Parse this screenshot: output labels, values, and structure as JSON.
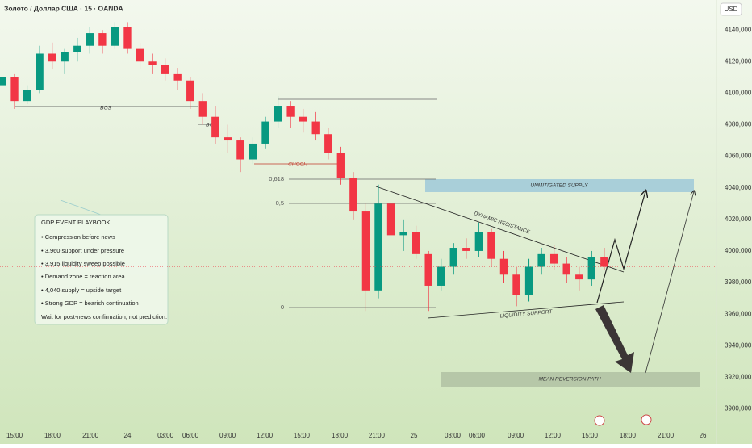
{
  "chart_data": {
    "type": "candlestick",
    "title": "Золото / Доллар США · 15 · OANDA",
    "currency": "USD",
    "x": [
      -1,
      0,
      1,
      2,
      3,
      4,
      5,
      6,
      7,
      8,
      9,
      10,
      11,
      12,
      13,
      14,
      15,
      16,
      17,
      18,
      19,
      20,
      21,
      22,
      23,
      24,
      25,
      26,
      27,
      28,
      29,
      30,
      31,
      32,
      33,
      34,
      35,
      36,
      37,
      38,
      39,
      40,
      41,
      42,
      43,
      44,
      45,
      46,
      47
    ],
    "open": [
      4105,
      4110,
      4095,
      4102,
      4125,
      4120,
      4126,
      4130,
      4138,
      4130,
      4142,
      4128,
      4120,
      4118,
      4112,
      4108,
      4095,
      4085,
      4072,
      4070,
      4058,
      4068,
      4082,
      4092,
      4085,
      4082,
      4074,
      4062,
      4046,
      4025,
      3975,
      4030,
      4010,
      4012,
      3998,
      3978,
      3990,
      4002,
      4000,
      4012,
      3995,
      3985,
      3972,
      3990,
      3998,
      3992,
      3985,
      3982,
      3996
    ],
    "high": [
      4115,
      4112,
      4105,
      4130,
      4132,
      4128,
      4135,
      4142,
      4140,
      4145,
      4145,
      4132,
      4125,
      4122,
      4116,
      4110,
      4100,
      4092,
      4080,
      4072,
      4072,
      4085,
      4098,
      4095,
      4090,
      4088,
      4078,
      4066,
      4050,
      4030,
      4042,
      4034,
      4020,
      4016,
      4000,
      3995,
      4005,
      4008,
      4018,
      4014,
      4000,
      3990,
      3995,
      4002,
      4004,
      3996,
      3990,
      4000,
      4002
    ],
    "low": [
      4100,
      4090,
      4093,
      4100,
      4115,
      4112,
      4120,
      4125,
      4125,
      4128,
      4125,
      4115,
      4112,
      4108,
      4102,
      4090,
      4080,
      4068,
      4062,
      4050,
      4055,
      4065,
      4078,
      4078,
      4075,
      4070,
      4058,
      4042,
      4020,
      3962,
      3970,
      4005,
      4000,
      3995,
      3962,
      3975,
      3985,
      3995,
      3996,
      3990,
      3980,
      3965,
      3968,
      3985,
      3988,
      3980,
      3975,
      3978,
      3988
    ],
    "close": [
      4110,
      4095,
      4102,
      4125,
      4120,
      4126,
      4130,
      4138,
      4130,
      4142,
      4128,
      4120,
      4118,
      4112,
      4108,
      4095,
      4085,
      4072,
      4070,
      4058,
      4068,
      4082,
      4092,
      4085,
      4082,
      4074,
      4062,
      4046,
      4025,
      3975,
      4030,
      4010,
      4012,
      3998,
      3978,
      3990,
      4002,
      4000,
      4012,
      3995,
      3985,
      3972,
      3990,
      3998,
      3992,
      3985,
      3982,
      3996,
      3990
    ],
    "up_color": "#089981",
    "down_color": "#f23645",
    "xlim": [
      -1.16,
      55.95
    ],
    "ylim": [
      3889,
      4159
    ],
    "yticks": [
      {
        "value": 4140,
        "label": "4140,000"
      },
      {
        "value": 4120,
        "label": "4120,000"
      },
      {
        "value": 4100,
        "label": "4100,000"
      },
      {
        "value": 4080,
        "label": "4080,000"
      },
      {
        "value": 4060,
        "label": "4060,000"
      },
      {
        "value": 4040,
        "label": "4040,000"
      },
      {
        "value": 4020,
        "label": "4020,000"
      },
      {
        "value": 4000,
        "label": "4000,000"
      },
      {
        "value": 3980,
        "label": "3980,000"
      },
      {
        "value": 3960,
        "label": "3960,000"
      },
      {
        "value": 3940,
        "label": "3940,000"
      },
      {
        "value": 3920,
        "label": "3920,000"
      },
      {
        "value": 3900,
        "label": "3900,000"
      }
    ],
    "xticks": [
      {
        "value": 0,
        "label": "15:00"
      },
      {
        "value": 3.02,
        "label": "18:00"
      },
      {
        "value": 6.05,
        "label": "21:00"
      },
      {
        "value": 9.0,
        "label": "24"
      },
      {
        "value": 12.03,
        "label": "03:00"
      },
      {
        "value": 14.02,
        "label": "06:00"
      },
      {
        "value": 16.98,
        "label": "09:00"
      },
      {
        "value": 19.94,
        "label": "12:00"
      },
      {
        "value": 22.89,
        "label": "15:00"
      },
      {
        "value": 25.92,
        "label": "18:00"
      },
      {
        "value": 28.87,
        "label": "21:00"
      },
      {
        "value": 31.83,
        "label": "25"
      },
      {
        "value": 34.92,
        "label": "03:00"
      },
      {
        "value": 36.85,
        "label": "06:00"
      },
      {
        "value": 39.94,
        "label": "09:00"
      },
      {
        "value": 42.89,
        "label": "12:00"
      },
      {
        "value": 45.85,
        "label": "15:00"
      },
      {
        "value": 48.87,
        "label": "18:00"
      },
      {
        "value": 51.9,
        "label": "21:00"
      },
      {
        "value": 54.86,
        "label": "26"
      }
    ],
    "annotations": {
      "bos_1": "BOS",
      "bos_2": "BOS",
      "choch": "CHOCH",
      "fib_618": "0,618",
      "fib_5": "0,5",
      "fib_0": "0",
      "supply": "UNMITIGATED SUPPLY",
      "mean_reversion": "MEAN REVERSION PATH",
      "resistance": "DYNAMIC RESISTANCE",
      "support": "LIQUIDITY SUPPORT"
    },
    "playbook": {
      "title": "GDP EVENT PLAYBOOK",
      "items": [
        "• Compression before news",
        "• 3,960 support under pressure",
        "• 3,915 liquidity sweep possible",
        "• Demand zone = reaction area",
        "• 4,040 supply = upside target",
        "• Strong GDP = bearish continuation"
      ],
      "footer": "Wait for post-news confirmation, not prediction."
    }
  }
}
